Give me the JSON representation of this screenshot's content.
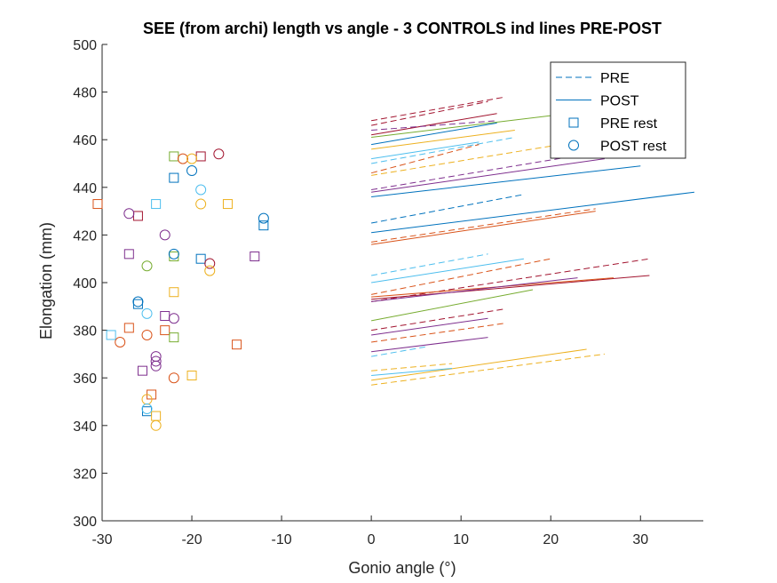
{
  "chart_data": {
    "type": "scatter",
    "title": "SEE (from archi) length vs angle - 3 CONTROLS ind lines PRE-POST",
    "xlabel": "Gonio angle (°)",
    "ylabel": "Elongation (mm)",
    "xlim": [
      -30,
      37
    ],
    "ylim": [
      300,
      500
    ],
    "xticks": [
      -30,
      -20,
      -10,
      0,
      10,
      20,
      30
    ],
    "yticks": [
      300,
      320,
      340,
      360,
      380,
      400,
      420,
      440,
      460,
      480,
      500
    ],
    "grid": false,
    "legend_position": "top-right",
    "legend": [
      {
        "label": "PRE",
        "style": "dashed-line"
      },
      {
        "label": "POST",
        "style": "solid-line"
      },
      {
        "label": "PRE rest",
        "style": "square-marker"
      },
      {
        "label": "POST rest",
        "style": "circle-marker"
      }
    ],
    "colors": [
      "#0072BD",
      "#D95319",
      "#EDB120",
      "#7E2F8E",
      "#77AC30",
      "#4DBEEE",
      "#A2142F"
    ],
    "lines": [
      {
        "kind": "pre",
        "color": "#A2142F",
        "x": [
          0,
          15
        ],
        "y": [
          468,
          478
        ]
      },
      {
        "kind": "pre",
        "color": "#A2142F",
        "x": [
          0,
          13
        ],
        "y": [
          466,
          476
        ]
      },
      {
        "kind": "post",
        "color": "#A2142F",
        "x": [
          0,
          14
        ],
        "y": [
          462,
          471
        ]
      },
      {
        "kind": "post",
        "color": "#77AC30",
        "x": [
          0,
          22
        ],
        "y": [
          461,
          471
        ]
      },
      {
        "kind": "pre",
        "color": "#7E2F8E",
        "x": [
          0,
          14
        ],
        "y": [
          464,
          468
        ]
      },
      {
        "kind": "post",
        "color": "#0072BD",
        "x": [
          0,
          14
        ],
        "y": [
          458,
          467
        ]
      },
      {
        "kind": "post",
        "color": "#EDB120",
        "x": [
          0,
          16
        ],
        "y": [
          456,
          464
        ]
      },
      {
        "kind": "pre",
        "color": "#4DBEEE",
        "x": [
          0,
          16
        ],
        "y": [
          450,
          461
        ]
      },
      {
        "kind": "post",
        "color": "#4DBEEE",
        "x": [
          0,
          12
        ],
        "y": [
          452,
          459
        ]
      },
      {
        "kind": "pre",
        "color": "#D95319",
        "x": [
          0,
          12
        ],
        "y": [
          446,
          458
        ]
      },
      {
        "kind": "pre",
        "color": "#EDB120",
        "x": [
          0,
          26
        ],
        "y": [
          445,
          461
        ]
      },
      {
        "kind": "pre",
        "color": "#7E2F8E",
        "x": [
          0,
          24
        ],
        "y": [
          439,
          454
        ]
      },
      {
        "kind": "post",
        "color": "#7E2F8E",
        "x": [
          0,
          26
        ],
        "y": [
          438,
          452
        ]
      },
      {
        "kind": "post",
        "color": "#0072BD",
        "x": [
          0,
          30
        ],
        "y": [
          436,
          449
        ]
      },
      {
        "kind": "pre",
        "color": "#0072BD",
        "x": [
          0,
          17
        ],
        "y": [
          425,
          437
        ]
      },
      {
        "kind": "post",
        "color": "#0072BD",
        "x": [
          0,
          36
        ],
        "y": [
          421,
          438
        ]
      },
      {
        "kind": "pre",
        "color": "#D95319",
        "x": [
          0,
          25
        ],
        "y": [
          417,
          431
        ]
      },
      {
        "kind": "post",
        "color": "#D95319",
        "x": [
          0,
          25
        ],
        "y": [
          416,
          430
        ]
      },
      {
        "kind": "pre",
        "color": "#4DBEEE",
        "x": [
          0,
          13
        ],
        "y": [
          403,
          412
        ]
      },
      {
        "kind": "post",
        "color": "#4DBEEE",
        "x": [
          0,
          17
        ],
        "y": [
          400,
          410
        ]
      },
      {
        "kind": "pre",
        "color": "#D95319",
        "x": [
          0,
          20
        ],
        "y": [
          395,
          410
        ]
      },
      {
        "kind": "pre",
        "color": "#A2142F",
        "x": [
          0,
          31
        ],
        "y": [
          392,
          410
        ]
      },
      {
        "kind": "post",
        "color": "#A2142F",
        "x": [
          0,
          31
        ],
        "y": [
          393,
          403
        ]
      },
      {
        "kind": "post",
        "color": "#D95319",
        "x": [
          0,
          27
        ],
        "y": [
          394,
          402
        ]
      },
      {
        "kind": "post",
        "color": "#7E2F8E",
        "x": [
          0,
          23
        ],
        "y": [
          392,
          402
        ]
      },
      {
        "kind": "post",
        "color": "#77AC30",
        "x": [
          0,
          18
        ],
        "y": [
          384,
          397
        ]
      },
      {
        "kind": "pre",
        "color": "#A2142F",
        "x": [
          0,
          15
        ],
        "y": [
          380,
          389
        ]
      },
      {
        "kind": "post",
        "color": "#7E2F8E",
        "x": [
          0,
          13
        ],
        "y": [
          378,
          385
        ]
      },
      {
        "kind": "pre",
        "color": "#D95319",
        "x": [
          0,
          15
        ],
        "y": [
          375,
          383
        ]
      },
      {
        "kind": "post",
        "color": "#7E2F8E",
        "x": [
          0,
          13
        ],
        "y": [
          371,
          377
        ]
      },
      {
        "kind": "pre",
        "color": "#4DBEEE",
        "x": [
          0,
          6
        ],
        "y": [
          369,
          373
        ]
      },
      {
        "kind": "post",
        "color": "#EDB120",
        "x": [
          0,
          24
        ],
        "y": [
          359,
          372
        ]
      },
      {
        "kind": "pre",
        "color": "#EDB120",
        "x": [
          0,
          26
        ],
        "y": [
          357,
          370
        ]
      },
      {
        "kind": "post",
        "color": "#4DBEEE",
        "x": [
          0,
          9
        ],
        "y": [
          361,
          364
        ]
      },
      {
        "kind": "pre",
        "color": "#EDB120",
        "x": [
          0,
          9
        ],
        "y": [
          363,
          366
        ]
      }
    ],
    "pre_rest": [
      {
        "x": -30.5,
        "y": 433,
        "color": "#D95319"
      },
      {
        "x": -29,
        "y": 378,
        "color": "#4DBEEE"
      },
      {
        "x": -27,
        "y": 412,
        "color": "#7E2F8E"
      },
      {
        "x": -27,
        "y": 381,
        "color": "#D95319"
      },
      {
        "x": -26,
        "y": 428,
        "color": "#A2142F"
      },
      {
        "x": -26,
        "y": 391,
        "color": "#0072BD"
      },
      {
        "x": -25.5,
        "y": 363,
        "color": "#7E2F8E"
      },
      {
        "x": -25,
        "y": 346,
        "color": "#0072BD"
      },
      {
        "x": -24.5,
        "y": 353,
        "color": "#D95319"
      },
      {
        "x": -24,
        "y": 433,
        "color": "#4DBEEE"
      },
      {
        "x": -24,
        "y": 344,
        "color": "#EDB120"
      },
      {
        "x": -23,
        "y": 386,
        "color": "#7E2F8E"
      },
      {
        "x": -23,
        "y": 380,
        "color": "#D95319"
      },
      {
        "x": -22,
        "y": 453,
        "color": "#77AC30"
      },
      {
        "x": -22,
        "y": 444,
        "color": "#0072BD"
      },
      {
        "x": -22,
        "y": 411,
        "color": "#77AC30"
      },
      {
        "x": -22,
        "y": 396,
        "color": "#EDB120"
      },
      {
        "x": -22,
        "y": 377,
        "color": "#77AC30"
      },
      {
        "x": -20,
        "y": 361,
        "color": "#EDB120"
      },
      {
        "x": -19,
        "y": 453,
        "color": "#A2142F"
      },
      {
        "x": -19,
        "y": 410,
        "color": "#0072BD"
      },
      {
        "x": -16,
        "y": 433,
        "color": "#EDB120"
      },
      {
        "x": -15,
        "y": 374,
        "color": "#D95319"
      },
      {
        "x": -13,
        "y": 411,
        "color": "#7E2F8E"
      },
      {
        "x": -12,
        "y": 424,
        "color": "#0072BD"
      }
    ],
    "post_rest": [
      {
        "x": -28,
        "y": 375,
        "color": "#D95319"
      },
      {
        "x": -27,
        "y": 429,
        "color": "#7E2F8E"
      },
      {
        "x": -26,
        "y": 392,
        "color": "#0072BD"
      },
      {
        "x": -25,
        "y": 407,
        "color": "#77AC30"
      },
      {
        "x": -25,
        "y": 387,
        "color": "#4DBEEE"
      },
      {
        "x": -25,
        "y": 378,
        "color": "#D95319"
      },
      {
        "x": -25,
        "y": 351,
        "color": "#EDB120"
      },
      {
        "x": -25,
        "y": 347,
        "color": "#4DBEEE"
      },
      {
        "x": -24,
        "y": 369,
        "color": "#7E2F8E"
      },
      {
        "x": -24,
        "y": 367,
        "color": "#7E2F8E"
      },
      {
        "x": -24,
        "y": 365,
        "color": "#7E2F8E"
      },
      {
        "x": -24,
        "y": 340,
        "color": "#EDB120"
      },
      {
        "x": -23,
        "y": 420,
        "color": "#7E2F8E"
      },
      {
        "x": -22,
        "y": 412,
        "color": "#0072BD"
      },
      {
        "x": -22,
        "y": 385,
        "color": "#7E2F8E"
      },
      {
        "x": -22,
        "y": 360,
        "color": "#D95319"
      },
      {
        "x": -21,
        "y": 452,
        "color": "#D95319"
      },
      {
        "x": -20,
        "y": 452,
        "color": "#EDB120"
      },
      {
        "x": -20,
        "y": 447,
        "color": "#0072BD"
      },
      {
        "x": -19,
        "y": 439,
        "color": "#4DBEEE"
      },
      {
        "x": -19,
        "y": 433,
        "color": "#EDB120"
      },
      {
        "x": -18,
        "y": 408,
        "color": "#A2142F"
      },
      {
        "x": -18,
        "y": 405,
        "color": "#EDB120"
      },
      {
        "x": -17,
        "y": 454,
        "color": "#A2142F"
      },
      {
        "x": -12,
        "y": 427,
        "color": "#0072BD"
      }
    ]
  }
}
